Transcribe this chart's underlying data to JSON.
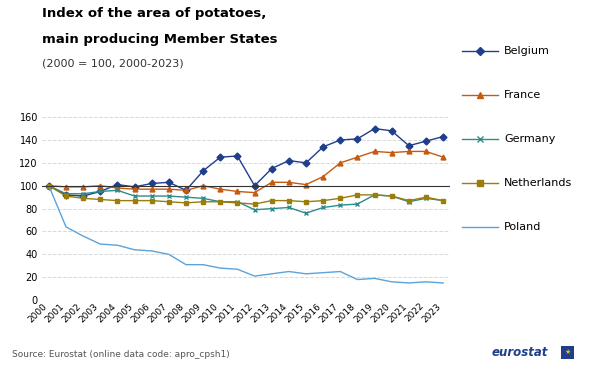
{
  "title_line1": "Index of the area of potatoes,",
  "title_line2": "main producing Member States",
  "subtitle": "(2000 = 100, 2000-2023)",
  "source": "Source: Eurostat (online data code: apro_cpsh1)",
  "years": [
    2000,
    2001,
    2002,
    2003,
    2004,
    2005,
    2006,
    2007,
    2008,
    2009,
    2010,
    2011,
    2012,
    2013,
    2014,
    2015,
    2016,
    2017,
    2018,
    2019,
    2020,
    2021,
    2022,
    2023
  ],
  "Belgium": [
    100,
    92,
    91,
    95,
    101,
    99,
    102,
    103,
    96,
    113,
    125,
    126,
    100,
    115,
    122,
    120,
    134,
    140,
    141,
    150,
    148,
    135,
    139,
    143
  ],
  "France": [
    100,
    99,
    99,
    100,
    98,
    97,
    97,
    97,
    96,
    100,
    97,
    95,
    94,
    103,
    103,
    101,
    108,
    120,
    125,
    130,
    129,
    130,
    130,
    125
  ],
  "Germany": [
    100,
    93,
    93,
    95,
    96,
    91,
    91,
    91,
    90,
    89,
    86,
    86,
    79,
    80,
    81,
    76,
    81,
    83,
    84,
    92,
    91,
    86,
    89,
    87
  ],
  "Netherlands": [
    100,
    91,
    89,
    88,
    87,
    87,
    87,
    86,
    85,
    86,
    86,
    85,
    84,
    87,
    87,
    86,
    87,
    89,
    92,
    92,
    91,
    87,
    90,
    87
  ],
  "Poland": [
    100,
    64,
    56,
    49,
    48,
    44,
    43,
    40,
    31,
    31,
    28,
    27,
    21,
    23,
    25,
    23,
    24,
    25,
    18,
    19,
    16,
    15,
    16,
    15
  ],
  "colors": {
    "Belgium": "#1f3e8c",
    "France": "#c55a11",
    "Germany": "#2e8b8b",
    "Netherlands": "#9a7d0a",
    "Poland": "#5ba3d9"
  },
  "ylim": [
    0,
    160
  ],
  "yticks": [
    0,
    20,
    40,
    60,
    80,
    100,
    120,
    140,
    160
  ],
  "background_color": "#ffffff",
  "grid_color": "#d9d9d9"
}
